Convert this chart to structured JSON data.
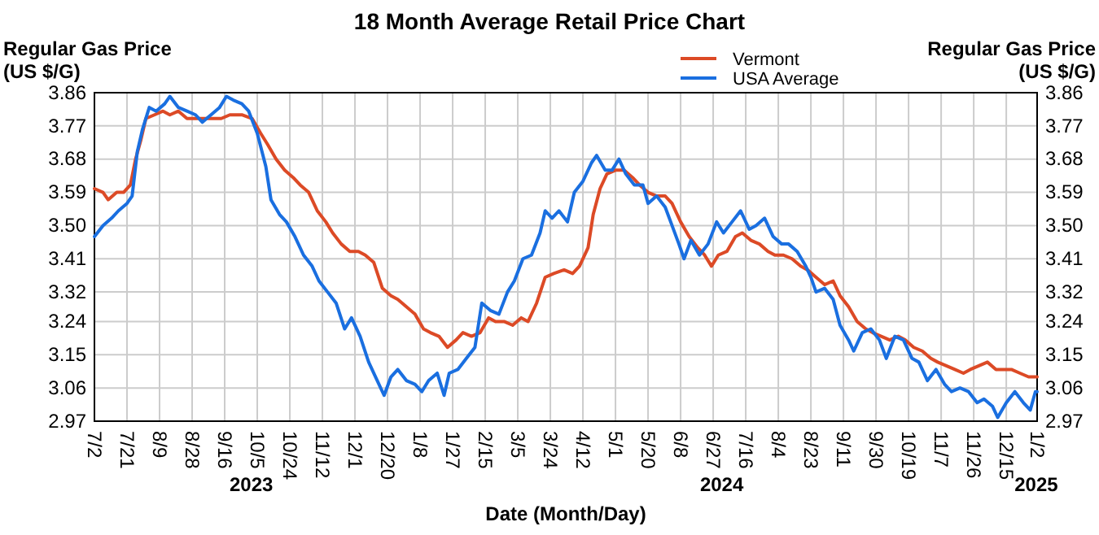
{
  "chart_data": {
    "type": "line",
    "title": "18 Month Average Retail Price Chart",
    "xlabel": "Date (Month/Day)",
    "ylabel": "Regular Gas Price (US $/G)",
    "y2label": "Regular Gas Price (US $/G)",
    "annotations": [
      "2023",
      "2024",
      "2025"
    ],
    "xlim": [
      "2023-07-02",
      "2025-01-02"
    ],
    "xticks": [
      {
        "value": "2023-07-02",
        "label": "7/2"
      },
      {
        "value": "2023-07-21",
        "label": "7/21"
      },
      {
        "value": "2023-08-09",
        "label": "8/9"
      },
      {
        "value": "2023-08-28",
        "label": "8/28"
      },
      {
        "value": "2023-09-16",
        "label": "9/16"
      },
      {
        "value": "2023-10-05",
        "label": "10/5"
      },
      {
        "value": "2023-10-24",
        "label": "10/24"
      },
      {
        "value": "2023-11-12",
        "label": "11/12"
      },
      {
        "value": "2023-12-01",
        "label": "12/1"
      },
      {
        "value": "2023-12-20",
        "label": "12/20"
      },
      {
        "value": "2024-01-08",
        "label": "1/8"
      },
      {
        "value": "2024-01-27",
        "label": "1/27"
      },
      {
        "value": "2024-02-15",
        "label": "2/15"
      },
      {
        "value": "2024-03-05",
        "label": "3/5"
      },
      {
        "value": "2024-03-24",
        "label": "3/24"
      },
      {
        "value": "2024-04-12",
        "label": "4/12"
      },
      {
        "value": "2024-05-01",
        "label": "5/1"
      },
      {
        "value": "2024-05-20",
        "label": "5/20"
      },
      {
        "value": "2024-06-08",
        "label": "6/8"
      },
      {
        "value": "2024-06-27",
        "label": "6/27"
      },
      {
        "value": "2024-07-16",
        "label": "7/16"
      },
      {
        "value": "2024-08-04",
        "label": "8/4"
      },
      {
        "value": "2024-08-23",
        "label": "8/23"
      },
      {
        "value": "2024-09-11",
        "label": "9/11"
      },
      {
        "value": "2024-09-30",
        "label": "9/30"
      },
      {
        "value": "2024-10-19",
        "label": "10/19"
      },
      {
        "value": "2024-11-07",
        "label": "11/7"
      },
      {
        "value": "2024-11-26",
        "label": "11/26"
      },
      {
        "value": "2024-12-15",
        "label": "12/15"
      },
      {
        "value": "2025-01-02",
        "label": "1/2"
      }
    ],
    "ylim": [
      2.97,
      3.86
    ],
    "yticks": [
      2.97,
      3.06,
      3.15,
      3.24,
      3.32,
      3.41,
      {
        "value": 3.5,
        "label": "3.50"
      },
      3.59,
      3.68,
      3.77,
      3.86
    ],
    "y2lim": [
      2.97,
      3.86
    ],
    "y2ticks": [
      2.97,
      3.06,
      3.15,
      3.24,
      3.32,
      3.41,
      {
        "value": 3.5,
        "label": "3.50"
      },
      3.59,
      3.68,
      3.77,
      3.86
    ],
    "grid": true,
    "legend": "top",
    "line_style": "solid",
    "marker": "none",
    "series": [
      {
        "name": "Vermont",
        "color": "#dc4a26",
        "x": [
          "2023-07-02",
          "2023-07-07",
          "2023-07-10",
          "2023-07-15",
          "2023-07-19",
          "2023-07-23",
          "2023-07-26",
          "2023-07-29",
          "2023-08-01",
          "2023-08-06",
          "2023-08-11",
          "2023-08-15",
          "2023-08-20",
          "2023-08-25",
          "2023-08-30",
          "2023-09-05",
          "2023-09-10",
          "2023-09-14",
          "2023-09-19",
          "2023-09-26",
          "2023-10-02",
          "2023-10-07",
          "2023-10-11",
          "2023-10-16",
          "2023-10-21",
          "2023-10-26",
          "2023-10-30",
          "2023-11-04",
          "2023-11-09",
          "2023-11-14",
          "2023-11-18",
          "2023-11-23",
          "2023-11-28",
          "2023-12-03",
          "2023-12-07",
          "2023-12-12",
          "2023-12-17",
          "2023-12-22",
          "2023-12-26",
          "2023-12-31",
          "2024-01-05",
          "2024-01-10",
          "2024-01-14",
          "2024-01-19",
          "2024-01-24",
          "2024-01-29",
          "2024-02-02",
          "2024-02-07",
          "2024-02-12",
          "2024-02-17",
          "2024-02-21",
          "2024-02-26",
          "2024-03-02",
          "2024-03-07",
          "2024-03-11",
          "2024-03-16",
          "2024-03-21",
          "2024-03-26",
          "2024-04-01",
          "2024-04-06",
          "2024-04-10",
          "2024-04-15",
          "2024-04-18",
          "2024-04-22",
          "2024-04-26",
          "2024-05-01",
          "2024-05-06",
          "2024-05-11",
          "2024-05-15",
          "2024-05-20",
          "2024-05-25",
          "2024-05-30",
          "2024-06-03",
          "2024-06-08",
          "2024-06-13",
          "2024-06-18",
          "2024-06-22",
          "2024-06-26",
          "2024-06-30",
          "2024-07-05",
          "2024-07-10",
          "2024-07-14",
          "2024-07-19",
          "2024-07-24",
          "2024-07-29",
          "2024-08-02",
          "2024-08-07",
          "2024-08-12",
          "2024-08-17",
          "2024-08-21",
          "2024-08-26",
          "2024-08-31",
          "2024-09-05",
          "2024-09-09",
          "2024-09-14",
          "2024-09-19",
          "2024-09-24",
          "2024-09-28",
          "2024-10-03",
          "2024-10-08",
          "2024-10-13",
          "2024-10-17",
          "2024-10-22",
          "2024-10-27",
          "2024-11-01",
          "2024-11-05",
          "2024-11-10",
          "2024-11-15",
          "2024-11-20",
          "2024-11-24",
          "2024-11-29",
          "2024-12-04",
          "2024-12-09",
          "2024-12-13",
          "2024-12-18",
          "2024-12-23",
          "2024-12-28",
          "2025-01-02"
        ],
        "values": [
          3.6,
          3.59,
          3.57,
          3.59,
          3.59,
          3.61,
          3.68,
          3.73,
          3.79,
          3.8,
          3.81,
          3.8,
          3.81,
          3.79,
          3.79,
          3.79,
          3.79,
          3.79,
          3.8,
          3.8,
          3.79,
          3.75,
          3.72,
          3.68,
          3.65,
          3.63,
          3.61,
          3.59,
          3.54,
          3.51,
          3.48,
          3.45,
          3.43,
          3.43,
          3.42,
          3.4,
          3.33,
          3.31,
          3.3,
          3.28,
          3.26,
          3.22,
          3.21,
          3.2,
          3.17,
          3.19,
          3.21,
          3.2,
          3.21,
          3.25,
          3.24,
          3.24,
          3.23,
          3.25,
          3.24,
          3.29,
          3.36,
          3.37,
          3.38,
          3.37,
          3.39,
          3.44,
          3.53,
          3.6,
          3.64,
          3.65,
          3.65,
          3.63,
          3.61,
          3.59,
          3.58,
          3.58,
          3.56,
          3.51,
          3.47,
          3.44,
          3.42,
          3.39,
          3.42,
          3.43,
          3.47,
          3.48,
          3.46,
          3.45,
          3.43,
          3.42,
          3.42,
          3.41,
          3.39,
          3.38,
          3.36,
          3.34,
          3.35,
          3.31,
          3.28,
          3.24,
          3.22,
          3.21,
          3.2,
          3.19,
          3.2,
          3.19,
          3.17,
          3.16,
          3.14,
          3.13,
          3.12,
          3.11,
          3.1,
          3.11,
          3.12,
          3.13,
          3.11,
          3.11,
          3.11,
          3.1,
          3.09,
          3.09
        ]
      },
      {
        "name": "USA Average",
        "color": "#1a6fe0",
        "x": [
          "2023-07-02",
          "2023-07-07",
          "2023-07-12",
          "2023-07-16",
          "2023-07-21",
          "2023-07-24",
          "2023-07-27",
          "2023-07-30",
          "2023-08-03",
          "2023-08-07",
          "2023-08-12",
          "2023-08-15",
          "2023-08-20",
          "2023-08-25",
          "2023-08-30",
          "2023-09-03",
          "2023-09-08",
          "2023-09-13",
          "2023-09-17",
          "2023-09-21",
          "2023-09-26",
          "2023-09-30",
          "2023-10-05",
          "2023-10-10",
          "2023-10-13",
          "2023-10-18",
          "2023-10-22",
          "2023-10-27",
          "2023-11-01",
          "2023-11-06",
          "2023-11-10",
          "2023-11-15",
          "2023-11-20",
          "2023-11-25",
          "2023-11-29",
          "2023-12-04",
          "2023-12-09",
          "2023-12-14",
          "2023-12-18",
          "2023-12-22",
          "2023-12-26",
          "2023-12-31",
          "2024-01-05",
          "2024-01-09",
          "2024-01-13",
          "2024-01-18",
          "2024-01-22",
          "2024-01-25",
          "2024-01-30",
          "2024-02-04",
          "2024-02-09",
          "2024-02-13",
          "2024-02-18",
          "2024-02-23",
          "2024-02-28",
          "2024-03-03",
          "2024-03-08",
          "2024-03-13",
          "2024-03-18",
          "2024-03-21",
          "2024-03-25",
          "2024-03-29",
          "2024-04-03",
          "2024-04-07",
          "2024-04-12",
          "2024-04-17",
          "2024-04-20",
          "2024-04-25",
          "2024-04-29",
          "2024-05-03",
          "2024-05-07",
          "2024-05-12",
          "2024-05-17",
          "2024-05-20",
          "2024-05-25",
          "2024-05-30",
          "2024-06-03",
          "2024-06-07",
          "2024-06-10",
          "2024-06-14",
          "2024-06-19",
          "2024-06-24",
          "2024-06-29",
          "2024-07-03",
          "2024-07-08",
          "2024-07-13",
          "2024-07-18",
          "2024-07-22",
          "2024-07-27",
          "2024-08-01",
          "2024-08-06",
          "2024-08-10",
          "2024-08-15",
          "2024-08-20",
          "2024-08-23",
          "2024-08-26",
          "2024-08-31",
          "2024-09-05",
          "2024-09-09",
          "2024-09-14",
          "2024-09-17",
          "2024-09-22",
          "2024-09-27",
          "2024-10-02",
          "2024-10-06",
          "2024-10-11",
          "2024-10-16",
          "2024-10-21",
          "2024-10-25",
          "2024-10-30",
          "2024-11-04",
          "2024-11-09",
          "2024-11-13",
          "2024-11-18",
          "2024-11-23",
          "2024-11-28",
          "2024-12-02",
          "2024-12-07",
          "2024-12-10",
          "2024-12-15",
          "2024-12-20",
          "2024-12-25",
          "2024-12-29",
          "2025-01-01",
          "2025-01-02"
        ],
        "values": [
          3.47,
          3.5,
          3.52,
          3.54,
          3.56,
          3.58,
          3.7,
          3.76,
          3.82,
          3.81,
          3.83,
          3.85,
          3.82,
          3.81,
          3.8,
          3.78,
          3.8,
          3.82,
          3.85,
          3.84,
          3.83,
          3.81,
          3.75,
          3.66,
          3.57,
          3.53,
          3.51,
          3.47,
          3.42,
          3.39,
          3.35,
          3.32,
          3.29,
          3.22,
          3.25,
          3.2,
          3.13,
          3.08,
          3.04,
          3.09,
          3.11,
          3.08,
          3.07,
          3.05,
          3.08,
          3.1,
          3.04,
          3.1,
          3.11,
          3.14,
          3.17,
          3.29,
          3.27,
          3.26,
          3.32,
          3.35,
          3.41,
          3.42,
          3.48,
          3.54,
          3.52,
          3.54,
          3.51,
          3.59,
          3.62,
          3.67,
          3.69,
          3.65,
          3.65,
          3.68,
          3.64,
          3.61,
          3.61,
          3.56,
          3.58,
          3.55,
          3.5,
          3.45,
          3.41,
          3.46,
          3.42,
          3.45,
          3.51,
          3.48,
          3.51,
          3.54,
          3.49,
          3.5,
          3.52,
          3.47,
          3.45,
          3.45,
          3.43,
          3.39,
          3.36,
          3.32,
          3.33,
          3.3,
          3.23,
          3.19,
          3.16,
          3.21,
          3.22,
          3.19,
          3.14,
          3.2,
          3.19,
          3.14,
          3.13,
          3.08,
          3.11,
          3.07,
          3.05,
          3.06,
          3.05,
          3.02,
          3.03,
          3.01,
          2.98,
          3.02,
          3.05,
          3.02,
          3.0,
          3.05,
          3.05
        ]
      }
    ]
  }
}
